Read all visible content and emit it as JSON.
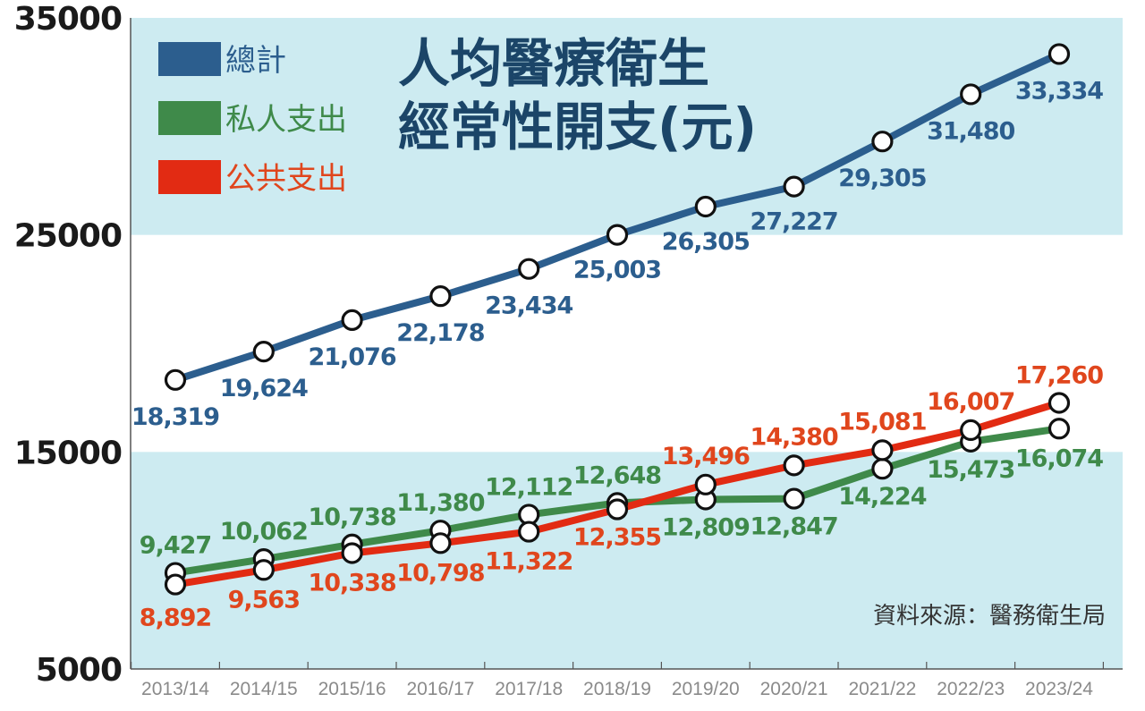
{
  "chart_data": {
    "type": "line",
    "title_lines": [
      "人均醫療衛生",
      "經常性開支(元)"
    ],
    "source": "資料來源：醫務衛生局",
    "categories": [
      "2013/14",
      "2014/15",
      "2015/16",
      "2016/17",
      "2017/18",
      "2018/19",
      "2019/20",
      "2020/21",
      "2021/22",
      "2022/23",
      "2023/24"
    ],
    "ylim": [
      5000,
      35000
    ],
    "yticks": [
      "5000",
      "15000",
      "25000",
      "35000"
    ],
    "grid": false,
    "legend_position": "top-left",
    "series": [
      {
        "name": "總計",
        "color": "#2c5e8e",
        "label_color": "#2c5e8e",
        "values": [
          18319,
          19624,
          21076,
          22178,
          23434,
          25003,
          26305,
          27227,
          29305,
          31480,
          33334
        ],
        "labels": [
          "18,319",
          "19,624",
          "21,076",
          "22,178",
          "23,434",
          "25,003",
          "26,305",
          "27,227",
          "29,305",
          "31,480",
          "33,334"
        ]
      },
      {
        "name": "私人支出",
        "color": "#3f8a4a",
        "label_color": "#3f8a4a",
        "values": [
          9427,
          10062,
          10738,
          11380,
          12112,
          12648,
          12809,
          12847,
          14224,
          15473,
          16074
        ],
        "labels": [
          "9,427",
          "10,062",
          "10,738",
          "11,380",
          "12,112",
          "12,648",
          "12,809",
          "12,847",
          "14,224",
          "15,473",
          "16,074"
        ]
      },
      {
        "name": "公共支出",
        "color": "#e22b13",
        "label_color": "#e0461d",
        "values": [
          8892,
          9563,
          10338,
          10798,
          11322,
          12355,
          13496,
          14380,
          15081,
          16007,
          17260
        ],
        "labels": [
          "8,892",
          "9,563",
          "10,338",
          "10,798",
          "11,322",
          "12,355",
          "13,496",
          "14,380",
          "15,081",
          "16,007",
          "17,260"
        ]
      }
    ]
  },
  "colors": {
    "band": "#cdebf1",
    "axis": "#555555",
    "title": "#1b4568"
  }
}
